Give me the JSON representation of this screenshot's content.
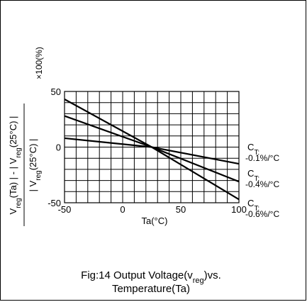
{
  "chart_data": {
    "type": "line",
    "ylabel_lines": [
      {
        "parts": [
          {
            "t": "V",
            "sub": false
          },
          {
            "t": "reg",
            "sub": true
          },
          {
            "t": "(Ta) | - | V",
            "sub": false
          },
          {
            "t": "reg",
            "sub": true
          },
          {
            "t": "(25°C) |",
            "sub": false
          }
        ]
      },
      {
        "parts": [
          {
            "t": "| V",
            "sub": false
          },
          {
            "t": "reg",
            "sub": true
          },
          {
            "t": "(25°C) |",
            "sub": false
          }
        ]
      }
    ],
    "yfactor": "×100(%)",
    "xlabel": "Ta(°C)",
    "xlim": [
      -50,
      100
    ],
    "ylim": [
      -50,
      50
    ],
    "x_ticks": [
      "-50",
      "0",
      "50",
      "100"
    ],
    "x_tick_values": [
      -50,
      0,
      50,
      100
    ],
    "y_ticks": [
      "50",
      "0",
      "-50"
    ],
    "y_tick_values": [
      50,
      0,
      -50
    ],
    "x_grid_step": 10,
    "y_grid_step": 10,
    "grid": true,
    "series": [
      {
        "ct_prefix": "C",
        "ct_sub": "T:",
        "ct_value": "-0.1%/°C",
        "x": [
          -50,
          25,
          100
        ],
        "y": [
          8,
          0,
          -15
        ]
      },
      {
        "ct_prefix": "C",
        "ct_sub": "T:",
        "ct_value": "-0.4%/°C",
        "x": [
          -50,
          25,
          100
        ],
        "y": [
          28,
          0,
          -31
        ]
      },
      {
        "ct_prefix": "C",
        "ct_sub": "T:",
        "ct_value": "-0.6%/°C",
        "x": [
          -50,
          25,
          100
        ],
        "y": [
          43,
          0,
          -47
        ]
      }
    ]
  },
  "caption": {
    "line1_parts": [
      {
        "t": "Fig:14  Output Voltage(v",
        "sub": false
      },
      {
        "t": "reg",
        "sub": true
      },
      {
        "t": ")vs.",
        "sub": false
      }
    ],
    "line2": "Temperature(Ta)"
  }
}
